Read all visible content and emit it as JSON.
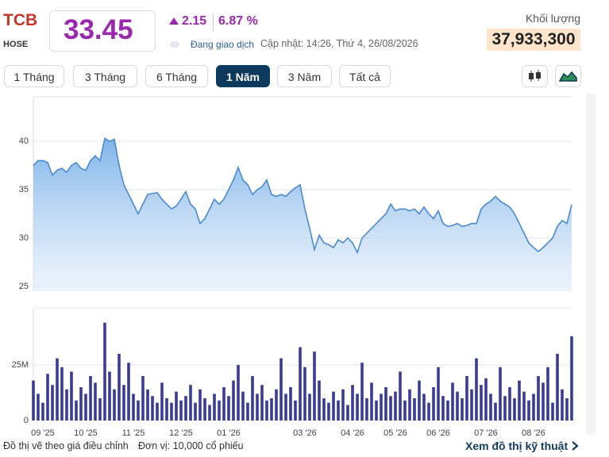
{
  "header": {
    "symbol": "TCB",
    "exchange": "HOSE",
    "price": "33.45",
    "change": "2.15",
    "change_percent": "6.87 %",
    "status": "Đang giao dịch",
    "updated": "Cập nhật: 14:26, Thứ 4, 26/08/2026",
    "volume_label": "Khối lượng",
    "volume": "37,933,300"
  },
  "tabs": [
    "1 Tháng",
    "3 Tháng",
    "6 Tháng",
    "1 Năm",
    "3 Năm",
    "Tất cả"
  ],
  "active_tab": 3,
  "footer": {
    "note": "Đồ thị vẽ theo giá điều chỉnh",
    "unit": "Đơn vị: 10,000 cổ phiếu",
    "link": "Xem đồ thị kỹ thuật"
  },
  "chart_data": [
    {
      "type": "area",
      "color": "#4a8ad4",
      "grid": true,
      "ylim": [
        24.5,
        44.6
      ],
      "yticks": [
        25,
        30,
        35,
        40
      ],
      "values": [
        37.5,
        38,
        38,
        37.8,
        36.5,
        37,
        37.2,
        36.8,
        37.5,
        37.8,
        37.2,
        37,
        38,
        38.5,
        38,
        40.3,
        40,
        40.2,
        37.5,
        35.5,
        34.5,
        33.5,
        32.5,
        33.5,
        34.5,
        34.6,
        34.7,
        34,
        33.5,
        33,
        33.3,
        34,
        34.8,
        33.5,
        33,
        31.5,
        32,
        33,
        34,
        33.5,
        34,
        35,
        36,
        37.3,
        36,
        35.5,
        34.5,
        35,
        35.3,
        36,
        34.5,
        34.3,
        34.5,
        34.3,
        34.8,
        35.2,
        35.5,
        33,
        31,
        28.8,
        30.3,
        29.5,
        29.3,
        29,
        29.8,
        29.5,
        30,
        29.5,
        28.5,
        30,
        30.5,
        31,
        31.5,
        32,
        32.5,
        33.5,
        32.8,
        33,
        33,
        32.8,
        33,
        32.5,
        33.2,
        32.5,
        32,
        32.8,
        31.5,
        31.2,
        31.3,
        31.5,
        31.2,
        31.3,
        31.5,
        31.5,
        33,
        33.5,
        33.8,
        34.3,
        33.8,
        33.5,
        33.2,
        32.5,
        31.5,
        30.5,
        29.5,
        29,
        28.6,
        29,
        29.5,
        30,
        31.2,
        31.8,
        31.5,
        33.45
      ]
    },
    {
      "type": "bar",
      "color": "#3a3d8f",
      "grid": true,
      "ylim": [
        0,
        50.7
      ],
      "yticks": [
        0,
        {
          "value": 25,
          "label": "25M"
        }
      ],
      "categories": [
        null,
        null,
        "09 '25",
        null,
        null,
        null,
        null,
        null,
        null,
        null,
        null,
        "10 '25",
        null,
        null,
        null,
        null,
        null,
        null,
        null,
        null,
        null,
        "11 '25",
        null,
        null,
        null,
        null,
        null,
        null,
        null,
        null,
        null,
        "12 '25",
        null,
        null,
        null,
        null,
        null,
        null,
        null,
        null,
        null,
        "01 '26",
        null,
        null,
        null,
        null,
        null,
        null,
        null,
        null,
        null,
        null,
        null,
        null,
        null,
        null,
        null,
        "03 '26",
        null,
        null,
        null,
        null,
        null,
        null,
        null,
        null,
        null,
        "04 '26",
        null,
        null,
        null,
        null,
        null,
        null,
        null,
        null,
        "05 '26",
        null,
        null,
        null,
        null,
        null,
        null,
        null,
        null,
        "06 '26",
        null,
        null,
        null,
        null,
        null,
        null,
        null,
        null,
        null,
        "07 '26",
        null,
        null,
        null,
        null,
        null,
        null,
        null,
        null,
        null,
        "08 '26",
        null,
        null,
        null,
        null,
        null,
        null,
        null,
        null
      ],
      "values": [
        18,
        12,
        8,
        21,
        16,
        28,
        24,
        14,
        22,
        9,
        15,
        12,
        20,
        17,
        10,
        44,
        22,
        14,
        30,
        16,
        26,
        12,
        9,
        20,
        14,
        11,
        8,
        17,
        10,
        8,
        13,
        9,
        11,
        16,
        8,
        14,
        10,
        7,
        12,
        9,
        15,
        11,
        18,
        25,
        13,
        8,
        20,
        12,
        16,
        9,
        10,
        14,
        28,
        12,
        15,
        9,
        33,
        24,
        12,
        31,
        18,
        10,
        8,
        13,
        9,
        14,
        7,
        16,
        12,
        26,
        10,
        17,
        9,
        12,
        15,
        11,
        13,
        22,
        9,
        14,
        10,
        18,
        12,
        8,
        15,
        24,
        11,
        9,
        17,
        13,
        10,
        20,
        14,
        28,
        16,
        19,
        12,
        8,
        24,
        11,
        15,
        10,
        18,
        13,
        9,
        12,
        20,
        17,
        24,
        8,
        30,
        14,
        10,
        37.93
      ]
    }
  ]
}
